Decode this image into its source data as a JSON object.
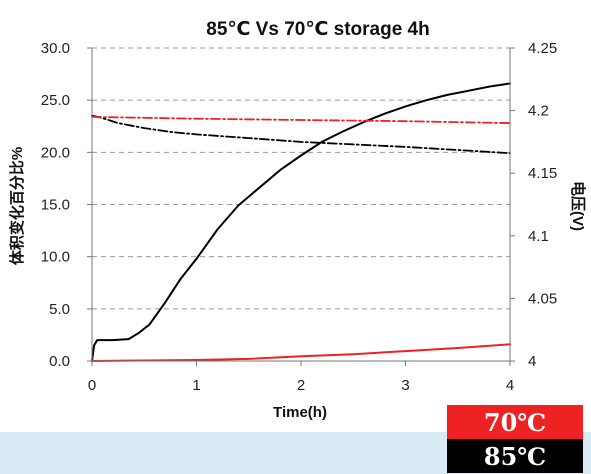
{
  "chart_data": {
    "type": "line",
    "title": "85℃ Vs 70℃ storage 4h",
    "xlabel": "Time(h)",
    "ylabel_left": "体积变化百分比%",
    "ylabel_right": "电压(V)",
    "xlim": [
      0,
      4
    ],
    "ylim_left": [
      0,
      30
    ],
    "ylim_right": [
      4.0,
      4.25
    ],
    "x_ticks": [
      "0",
      "1",
      "2",
      "3",
      "4"
    ],
    "y_left_ticks": [
      "0.0",
      "5.0",
      "10.0",
      "15.0",
      "20.0",
      "25.0",
      "30.0"
    ],
    "y_right_ticks": [
      "4",
      "4.05",
      "4.1",
      "4.15",
      "4.2",
      "4.25"
    ],
    "grid": "horizontal dashed",
    "series": [
      {
        "color": "#000000",
        "axis": "left",
        "style": "solid",
        "x": [
          0,
          0.02,
          0.05,
          0.1,
          0.2,
          0.35,
          0.45,
          0.55,
          0.7,
          0.85,
          1.0,
          1.2,
          1.4,
          1.6,
          1.8,
          2.0,
          2.2,
          2.4,
          2.6,
          2.8,
          3.0,
          3.2,
          3.4,
          3.6,
          3.8,
          4.0
        ],
        "y": [
          0,
          1.5,
          2.0,
          2.0,
          2.0,
          2.1,
          2.7,
          3.5,
          5.6,
          7.9,
          9.8,
          12.6,
          14.9,
          16.6,
          18.3,
          19.7,
          21.0,
          22.0,
          22.9,
          23.7,
          24.4,
          25.0,
          25.5,
          25.9,
          26.3,
          26.6
        ]
      },
      {
        "color": "#ee2222",
        "axis": "left",
        "style": "solid",
        "x": [
          0,
          0.5,
          1.0,
          1.5,
          2.0,
          2.5,
          3.0,
          3.5,
          4.0
        ],
        "y": [
          0,
          0.05,
          0.1,
          0.2,
          0.45,
          0.65,
          0.95,
          1.25,
          1.6
        ]
      },
      {
        "color": "#000000",
        "axis": "right",
        "style": "dash-dot",
        "x": [
          0,
          0.1,
          0.25,
          0.5,
          0.75,
          1.0,
          1.5,
          2.0,
          2.5,
          3.0,
          3.5,
          4.0
        ],
        "y": [
          4.196,
          4.194,
          4.19,
          4.186,
          4.183,
          4.181,
          4.178,
          4.175,
          4.173,
          4.171,
          4.1685,
          4.166
        ]
      },
      {
        "color": "#ee2222",
        "axis": "right",
        "style": "dash-dot",
        "x": [
          0,
          1.0,
          2.0,
          3.0,
          4.0
        ],
        "y": [
          4.195,
          4.1935,
          4.1925,
          4.1915,
          4.19
        ]
      }
    ]
  },
  "legend": {
    "label_70": "70℃",
    "label_85": "85℃"
  }
}
